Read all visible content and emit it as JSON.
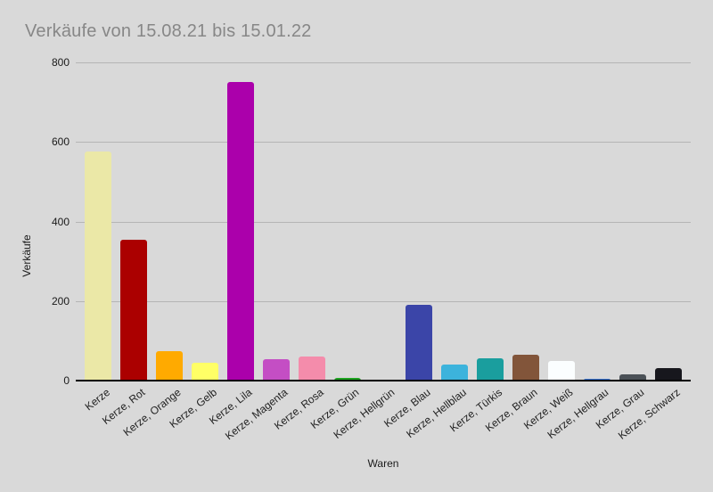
{
  "title": "Verkäufe von 15.08.21 bis 15.01.22",
  "colors": {
    "background": "#d9d9d9",
    "title_text": "#878787",
    "gridline": "#b5b5b5",
    "axis_line": "#000000",
    "tick_text": "#1a1a1a"
  },
  "chart_data": {
    "type": "bar",
    "title": "Verkäufe von 15.08.21 bis 15.01.22",
    "xlabel": "Waren",
    "ylabel": "Verkäufe",
    "ylim": [
      0,
      800
    ],
    "yticks": [
      0,
      200,
      400,
      600,
      800
    ],
    "grid": true,
    "legend": false,
    "categories": [
      "Kerze",
      "Kerze, Rot",
      "Kerze, Orange",
      "Kerze, Gelb",
      "Kerze, Lila",
      "Kerze, Magenta",
      "Kerze, Rosa",
      "Kerze, Grün",
      "Kerze, Hellgrün",
      "Kerze, Blau",
      "Kerze, Hellblau",
      "Kerze, Türkis",
      "Kerze, Braun",
      "Kerze, Weiß",
      "Kerze, Hellgrau",
      "Kerze, Grau",
      "Kerze, Schwarz"
    ],
    "values": [
      575,
      355,
      75,
      44,
      750,
      54,
      60,
      7,
      0,
      190,
      40,
      55,
      66,
      50,
      5,
      16,
      31
    ],
    "bar_colors": [
      "#ebe8a7",
      "#ab0000",
      "#ffaa00",
      "#ffff66",
      "#ab00ab",
      "#c44ec4",
      "#f48cab",
      "#1ea321",
      "#90d050",
      "#3b45a8",
      "#3cb3dc",
      "#1a9e9e",
      "#82553a",
      "#fbfeff",
      "#3b78d8",
      "#4b5157",
      "#17171d"
    ]
  }
}
